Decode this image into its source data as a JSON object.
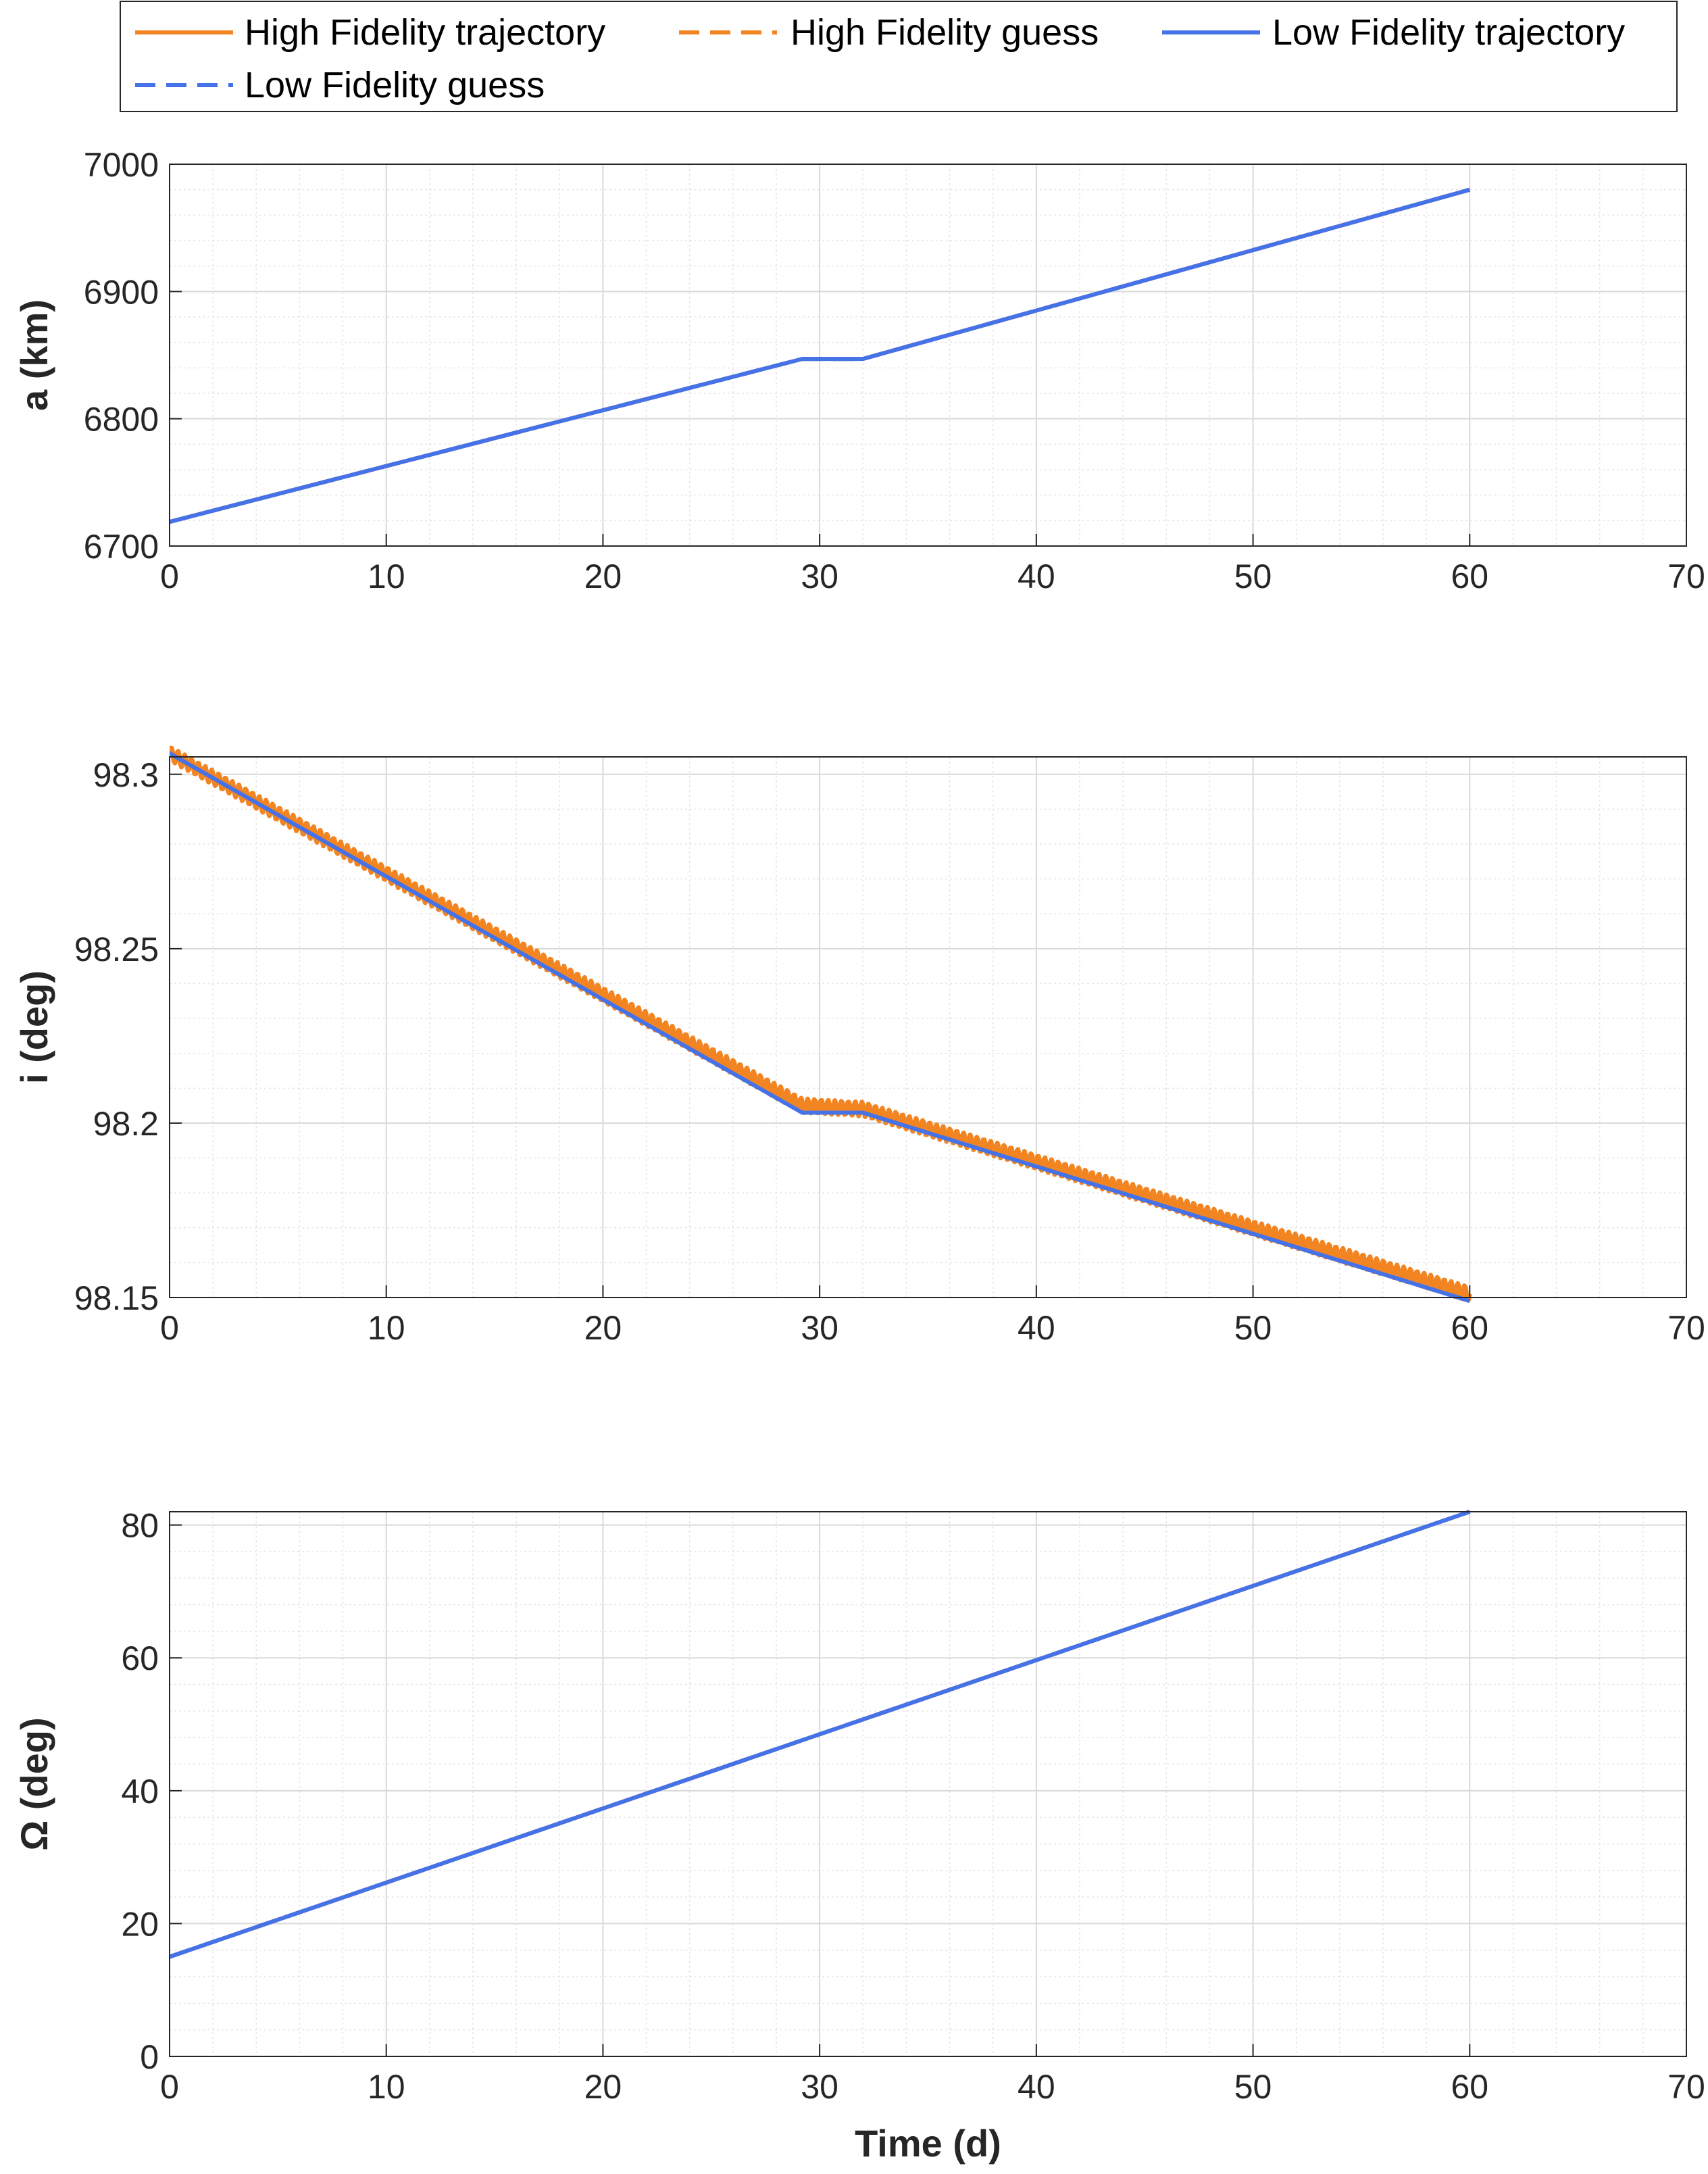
{
  "legend": {
    "location": "top",
    "entries": [
      {
        "label": "High Fidelity trajectory",
        "color": "#f28522",
        "style": "solid"
      },
      {
        "label": "High Fidelity guess",
        "color": "#f28522",
        "style": "dashed"
      },
      {
        "label": "Low Fidelity trajectory",
        "color": "#4672e8",
        "style": "solid"
      },
      {
        "label": "Low Fidelity guess",
        "color": "#4672e8",
        "style": "dashed"
      }
    ]
  },
  "colors": {
    "high_fidelity": "#f28522",
    "low_fidelity": "#4672e8"
  },
  "chart_data": [
    {
      "type": "line",
      "ylabel": "a (km)",
      "xlabel": "",
      "xlim": [
        0,
        70
      ],
      "ylim": [
        6700,
        7000
      ],
      "xticks": [
        "0",
        "10",
        "20",
        "30",
        "40",
        "50",
        "60",
        "70"
      ],
      "yticks": [
        "6700",
        "6800",
        "6900",
        "7000"
      ],
      "grid": true,
      "minor_grid": true,
      "series": [
        {
          "name": "High Fidelity trajectory",
          "oscillation": 0,
          "x": [
            0,
            29.2,
            32,
            60
          ],
          "y": [
            6719,
            6847,
            6847,
            6980
          ]
        },
        {
          "name": "High Fidelity guess",
          "oscillation": 0,
          "x": [
            0,
            29.2,
            32,
            60
          ],
          "y": [
            6719,
            6847,
            6847,
            6980
          ]
        },
        {
          "name": "Low Fidelity trajectory",
          "oscillation": 0,
          "x": [
            0,
            29.2,
            32,
            60
          ],
          "y": [
            6719,
            6847,
            6847,
            6980
          ]
        },
        {
          "name": "Low Fidelity guess",
          "oscillation": 0,
          "x": [
            0,
            29.2,
            32,
            60
          ],
          "y": [
            6719,
            6847,
            6847,
            6980
          ]
        }
      ]
    },
    {
      "type": "line",
      "ylabel": "i (deg)",
      "xlabel": "",
      "xlim": [
        0,
        70
      ],
      "ylim": [
        98.15,
        98.305
      ],
      "xticks": [
        "0",
        "10",
        "20",
        "30",
        "40",
        "50",
        "60",
        "70"
      ],
      "yticks": [
        "98.15",
        "98.2",
        "98.25",
        "98.3"
      ],
      "grid": true,
      "minor_grid": true,
      "series": [
        {
          "name": "High Fidelity trajectory",
          "oscillation": 0.002,
          "x": [
            0,
            29.2,
            32,
            60
          ],
          "y": [
            98.306,
            98.205,
            98.204,
            98.151
          ]
        },
        {
          "name": "High Fidelity guess",
          "oscillation": 0.002,
          "x": [
            0,
            29.2,
            32,
            60
          ],
          "y": [
            98.306,
            98.205,
            98.204,
            98.151
          ]
        },
        {
          "name": "Low Fidelity trajectory",
          "oscillation": 0,
          "x": [
            0,
            29.2,
            32,
            60
          ],
          "y": [
            98.306,
            98.203,
            98.203,
            98.149
          ]
        },
        {
          "name": "Low Fidelity guess",
          "oscillation": 0,
          "x": [
            0,
            29.2,
            32,
            60
          ],
          "y": [
            98.306,
            98.203,
            98.203,
            98.149
          ]
        }
      ]
    },
    {
      "type": "line",
      "ylabel": "Ω (deg)",
      "xlabel": "Time (d)",
      "xlim": [
        0,
        70
      ],
      "ylim": [
        0,
        82
      ],
      "xticks": [
        "0",
        "10",
        "20",
        "30",
        "40",
        "50",
        "60",
        "70"
      ],
      "yticks": [
        "0",
        "20",
        "40",
        "60",
        "80"
      ],
      "grid": true,
      "minor_grid": true,
      "series": [
        {
          "name": "High Fidelity trajectory",
          "oscillation": 0,
          "x": [
            0,
            60
          ],
          "y": [
            15,
            82
          ]
        },
        {
          "name": "High Fidelity guess",
          "oscillation": 0,
          "x": [
            0,
            60
          ],
          "y": [
            15,
            82
          ]
        },
        {
          "name": "Low Fidelity trajectory",
          "oscillation": 0,
          "x": [
            0,
            60
          ],
          "y": [
            15,
            82
          ]
        },
        {
          "name": "Low Fidelity guess",
          "oscillation": 0,
          "x": [
            0,
            60
          ],
          "y": [
            15,
            82
          ]
        }
      ]
    }
  ]
}
